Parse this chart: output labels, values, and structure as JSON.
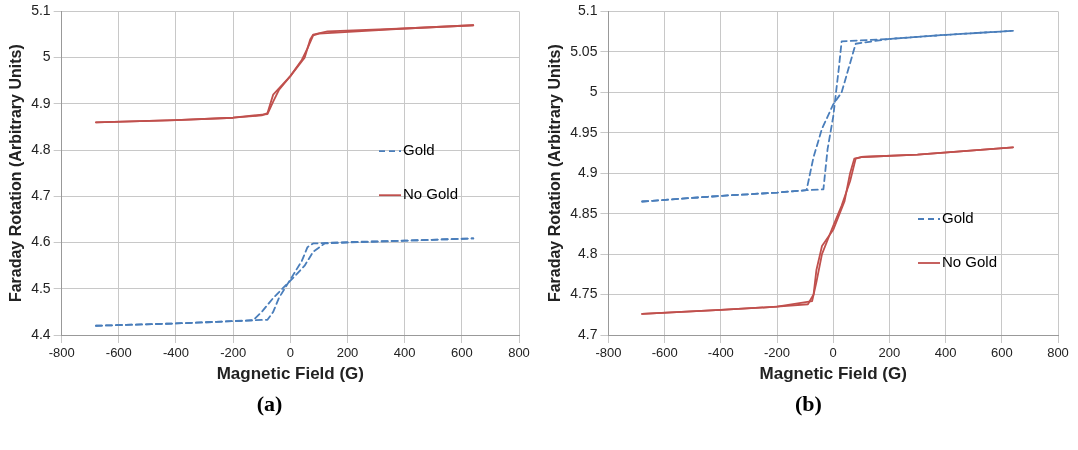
{
  "chart_data": [
    {
      "type": "line",
      "xlabel": "Magnetic Field (G)",
      "ylabel": "Faraday Rotation (Arbitrary Units)",
      "xlim": [
        -800,
        800
      ],
      "xticks": [
        -800,
        -600,
        -400,
        -200,
        0,
        200,
        400,
        600,
        800
      ],
      "ylim": [
        4.4,
        5.1
      ],
      "yticks": [
        4.4,
        4.5,
        4.6,
        4.7,
        4.8,
        4.9,
        5,
        5.1
      ],
      "grid": true,
      "legend": "right",
      "marker": "none",
      "annotations": [
        "(a)"
      ],
      "series": [
        {
          "name": "Gold",
          "color": "#4a7ebb",
          "line_style": "dashed",
          "x": [
            -680,
            -400,
            -200,
            -130,
            -100,
            -60,
            -20,
            20,
            50,
            80,
            120,
            200,
            400,
            640
          ],
          "values": [
            4.42,
            4.425,
            4.43,
            4.432,
            4.45,
            4.48,
            4.505,
            4.53,
            4.55,
            4.58,
            4.598,
            4.6,
            4.604,
            4.609
          ]
        },
        {
          "color": "#4a7ebb",
          "line_style": "dashed",
          "x": [
            -680,
            -400,
            -200,
            -80,
            -60,
            -40,
            0,
            40,
            60,
            80,
            200,
            400,
            640
          ],
          "values": [
            4.42,
            4.425,
            4.43,
            4.433,
            4.45,
            4.48,
            4.52,
            4.56,
            4.59,
            4.598,
            4.601,
            4.604,
            4.609
          ]
        },
        {
          "name": "No Gold",
          "color": "#c0504d",
          "line_style": "solid",
          "x": [
            -680,
            -400,
            -200,
            -100,
            -80,
            -60,
            0,
            50,
            70,
            80,
            130,
            400,
            640
          ],
          "values": [
            4.86,
            4.865,
            4.87,
            4.875,
            4.88,
            4.92,
            4.96,
            5.0,
            5.04,
            5.05,
            5.057,
            5.063,
            5.07
          ]
        },
        {
          "color": "#c0504d",
          "line_style": "solid",
          "x": [
            -680,
            -400,
            -200,
            -80,
            -60,
            -40,
            0,
            40,
            60,
            80,
            100,
            400,
            640
          ],
          "values": [
            4.86,
            4.865,
            4.87,
            4.878,
            4.905,
            4.93,
            4.96,
            4.995,
            5.02,
            5.048,
            5.052,
            5.063,
            5.07
          ]
        }
      ]
    },
    {
      "type": "line",
      "xlabel": "Magnetic Field (G)",
      "ylabel": "Faraday Rotation (Arbitrary Units)",
      "xlim": [
        -800,
        800
      ],
      "xticks": [
        -800,
        -600,
        -400,
        -200,
        0,
        200,
        400,
        600,
        800
      ],
      "ylim": [
        4.7,
        5.1
      ],
      "yticks": [
        4.7,
        4.75,
        4.8,
        4.85,
        4.9,
        4.95,
        5,
        5.05,
        5.1
      ],
      "grid": true,
      "legend": "bottom right",
      "marker": "none",
      "annotations": [
        "(b)"
      ],
      "series": [
        {
          "name": "Gold",
          "color": "#4a7ebb",
          "line_style": "dashed",
          "x": [
            -680,
            -400,
            -200,
            -95,
            -70,
            -40,
            0,
            30,
            80,
            200,
            400,
            640
          ],
          "values": [
            4.865,
            4.872,
            4.876,
            4.879,
            4.92,
            4.955,
            4.985,
            5.0,
            5.06,
            5.066,
            5.071,
            5.076
          ]
        },
        {
          "color": "#4a7ebb",
          "line_style": "dashed",
          "x": [
            -680,
            -400,
            -200,
            -95,
            -35,
            -20,
            0,
            20,
            30,
            200,
            400,
            640
          ],
          "values": [
            4.865,
            4.872,
            4.876,
            4.879,
            4.88,
            4.93,
            4.97,
            5.03,
            5.063,
            5.066,
            5.071,
            5.076
          ]
        },
        {
          "name": "No Gold",
          "color": "#c0504d",
          "line_style": "solid",
          "x": [
            -680,
            -400,
            -200,
            -90,
            -70,
            -60,
            -40,
            0,
            40,
            60,
            75,
            100,
            300,
            640
          ],
          "values": [
            4.726,
            4.731,
            4.735,
            4.738,
            4.75,
            4.78,
            4.81,
            4.83,
            4.865,
            4.9,
            4.918,
            4.92,
            4.923,
            4.932
          ]
        },
        {
          "color": "#c0504d",
          "line_style": "solid",
          "x": [
            -680,
            -400,
            -200,
            -75,
            -60,
            -40,
            0,
            30,
            60,
            80,
            100,
            300,
            640
          ],
          "values": [
            4.726,
            4.731,
            4.735,
            4.742,
            4.765,
            4.8,
            4.835,
            4.86,
            4.89,
            4.918,
            4.92,
            4.923,
            4.932
          ]
        }
      ]
    }
  ]
}
